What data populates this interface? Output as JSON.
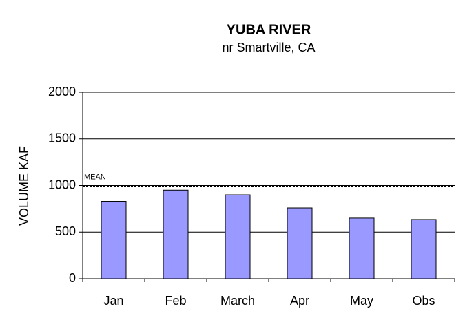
{
  "chart_data": {
    "type": "bar",
    "title": "YUBA RIVER",
    "subtitle": "nr Smartville, CA",
    "y_label": "VOLUME KAF",
    "categories": [
      "Jan",
      "Feb",
      "March",
      "Apr",
      "May",
      "Obs"
    ],
    "values": [
      830,
      950,
      900,
      760,
      650,
      635
    ],
    "color": "#9999ff",
    "ylim": [
      0,
      2000
    ],
    "yticks": [
      0,
      500,
      1000,
      1500,
      2000
    ],
    "grid": true,
    "mean": {
      "label": "MEAN",
      "value": 985
    }
  }
}
